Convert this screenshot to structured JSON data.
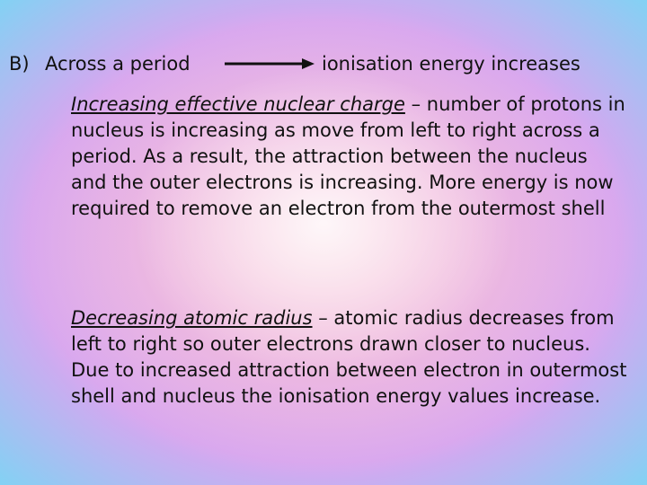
{
  "header": {
    "marker": "B)",
    "left_text": "Across a period",
    "right_text": "ionisation energy increases",
    "arrow_icon": "right-arrow-icon"
  },
  "paragraphs": [
    {
      "term": "Increasing effective nuclear charge",
      "separator": " – ",
      "body": "number of protons in nucleus is increasing as move from left to right across a period. As a result, the attraction between the nucleus and the outer electrons is increasing. More energy is now required to remove an electron from the outermost shell"
    },
    {
      "term": "Decreasing atomic radius",
      "separator": " – ",
      "body": "atomic radius decreases from left to right so outer electrons drawn closer to nucleus. Due to increased attraction between electron in outermost shell and nucleus the ionisation energy values increase."
    }
  ],
  "colors": {
    "text": "#111111",
    "background_edge": "#31e5ef",
    "background_center": "#f7c9d8",
    "background_mid": "#d7a6f0"
  }
}
